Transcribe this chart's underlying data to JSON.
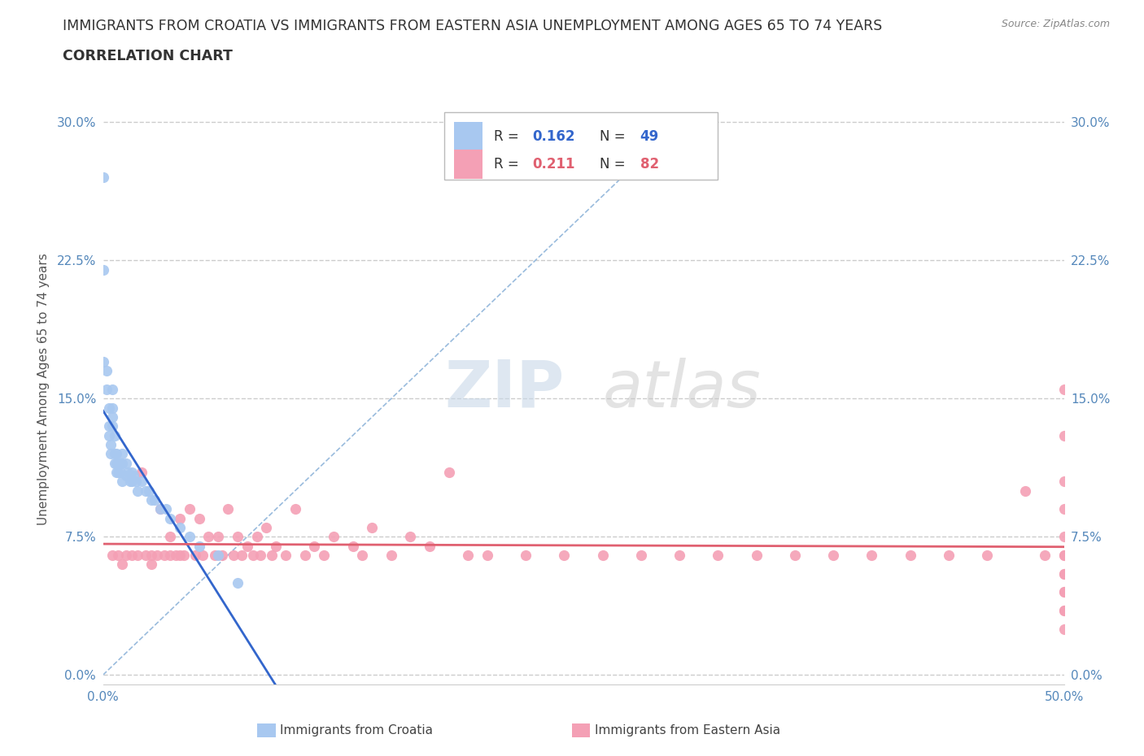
{
  "title": "IMMIGRANTS FROM CROATIA VS IMMIGRANTS FROM EASTERN ASIA UNEMPLOYMENT AMONG AGES 65 TO 74 YEARS",
  "subtitle": "CORRELATION CHART",
  "source": "Source: ZipAtlas.com",
  "ylabel": "Unemployment Among Ages 65 to 74 years",
  "xlabel_croatia": "Immigrants from Croatia",
  "xlabel_eastern_asia": "Immigrants from Eastern Asia",
  "xmin": 0.0,
  "xmax": 0.5,
  "ymin": -0.005,
  "ymax": 0.315,
  "yticks": [
    0.0,
    0.075,
    0.15,
    0.225,
    0.3
  ],
  "ytick_labels_left": [
    "0.0%",
    "7.5%",
    "15.0%",
    "22.5%",
    "30.0%"
  ],
  "ytick_labels_right": [
    "0.0%",
    "7.5%",
    "15.0%",
    "22.5%",
    "30.0%"
  ],
  "xticks": [
    0.0,
    0.125,
    0.25,
    0.375,
    0.5
  ],
  "xtick_labels": [
    "0.0%",
    "",
    "",
    "",
    "50.0%"
  ],
  "color_croatia": "#a8c8f0",
  "color_eastern_asia": "#f4a0b5",
  "trendline_croatia_color": "#3366cc",
  "trendline_eastern_asia_color": "#e06070",
  "diagonal_color": "#99bbdd",
  "R_croatia": 0.162,
  "N_croatia": 49,
  "R_eastern_asia": 0.211,
  "N_eastern_asia": 82,
  "watermark_zip": "ZIP",
  "watermark_atlas": "atlas",
  "title_color": "#333333",
  "tick_color": "#5588bb",
  "croatia_scatter_x": [
    0.0,
    0.0,
    0.0,
    0.002,
    0.002,
    0.003,
    0.003,
    0.003,
    0.004,
    0.004,
    0.005,
    0.005,
    0.005,
    0.005,
    0.006,
    0.006,
    0.006,
    0.007,
    0.007,
    0.007,
    0.008,
    0.008,
    0.009,
    0.009,
    0.01,
    0.01,
    0.01,
    0.012,
    0.012,
    0.013,
    0.014,
    0.015,
    0.015,
    0.016,
    0.017,
    0.018,
    0.02,
    0.022,
    0.024,
    0.025,
    0.027,
    0.03,
    0.033,
    0.035,
    0.04,
    0.045,
    0.05,
    0.06,
    0.07
  ],
  "croatia_scatter_y": [
    0.27,
    0.22,
    0.17,
    0.165,
    0.155,
    0.145,
    0.135,
    0.13,
    0.125,
    0.12,
    0.155,
    0.145,
    0.14,
    0.135,
    0.13,
    0.12,
    0.115,
    0.12,
    0.115,
    0.11,
    0.115,
    0.11,
    0.115,
    0.11,
    0.12,
    0.115,
    0.105,
    0.115,
    0.108,
    0.11,
    0.105,
    0.11,
    0.105,
    0.108,
    0.105,
    0.1,
    0.105,
    0.1,
    0.1,
    0.095,
    0.095,
    0.09,
    0.09,
    0.085,
    0.08,
    0.075,
    0.07,
    0.065,
    0.05
  ],
  "eastern_asia_scatter_x": [
    0.005,
    0.008,
    0.01,
    0.012,
    0.015,
    0.018,
    0.02,
    0.022,
    0.025,
    0.025,
    0.028,
    0.03,
    0.032,
    0.035,
    0.035,
    0.038,
    0.04,
    0.04,
    0.042,
    0.045,
    0.048,
    0.05,
    0.052,
    0.055,
    0.058,
    0.06,
    0.062,
    0.065,
    0.068,
    0.07,
    0.072,
    0.075,
    0.078,
    0.08,
    0.082,
    0.085,
    0.088,
    0.09,
    0.095,
    0.1,
    0.105,
    0.11,
    0.115,
    0.12,
    0.13,
    0.135,
    0.14,
    0.15,
    0.16,
    0.17,
    0.18,
    0.19,
    0.2,
    0.22,
    0.24,
    0.26,
    0.28,
    0.3,
    0.32,
    0.34,
    0.36,
    0.38,
    0.4,
    0.42,
    0.44,
    0.46,
    0.48,
    0.49,
    0.5,
    0.5,
    0.5,
    0.5,
    0.5,
    0.5,
    0.5,
    0.5,
    0.5,
    0.5,
    0.5,
    0.5,
    0.5,
    0.5
  ],
  "eastern_asia_scatter_y": [
    0.065,
    0.065,
    0.06,
    0.065,
    0.065,
    0.065,
    0.11,
    0.065,
    0.065,
    0.06,
    0.065,
    0.09,
    0.065,
    0.075,
    0.065,
    0.065,
    0.085,
    0.065,
    0.065,
    0.09,
    0.065,
    0.085,
    0.065,
    0.075,
    0.065,
    0.075,
    0.065,
    0.09,
    0.065,
    0.075,
    0.065,
    0.07,
    0.065,
    0.075,
    0.065,
    0.08,
    0.065,
    0.07,
    0.065,
    0.09,
    0.065,
    0.07,
    0.065,
    0.075,
    0.07,
    0.065,
    0.08,
    0.065,
    0.075,
    0.07,
    0.11,
    0.065,
    0.065,
    0.065,
    0.065,
    0.065,
    0.065,
    0.065,
    0.065,
    0.065,
    0.065,
    0.065,
    0.065,
    0.065,
    0.065,
    0.065,
    0.1,
    0.065,
    0.155,
    0.13,
    0.105,
    0.09,
    0.075,
    0.065,
    0.055,
    0.045,
    0.035,
    0.025,
    0.065,
    0.055,
    0.045,
    0.035
  ]
}
